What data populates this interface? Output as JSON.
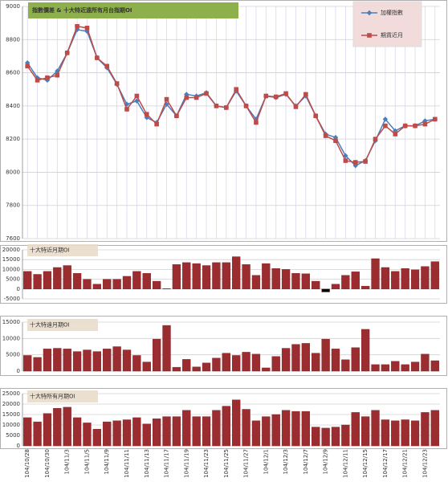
{
  "chart_data": [
    {
      "type": "line",
      "title": "指數價差 & 十大特近遠所有月台指期OI",
      "series": [
        {
          "name": "加權指數",
          "color": "#4a7ebb",
          "marker": "diamond",
          "values": [
            8660,
            8570,
            8555,
            8610,
            8720,
            8860,
            8850,
            8690,
            8630,
            8530,
            8410,
            8430,
            8330,
            8300,
            8410,
            8340,
            8470,
            8460,
            8480,
            8400,
            8390,
            8490,
            8400,
            8320,
            8460,
            8450,
            8470,
            8400,
            8460,
            8340,
            8230,
            8210,
            8100,
            8040,
            8070,
            8190,
            8320,
            8250,
            8280,
            8280,
            8310,
            8320
          ]
        },
        {
          "name": "期貨近月",
          "color": "#be4b48",
          "marker": "square",
          "values": [
            8640,
            8555,
            8570,
            8585,
            8720,
            8880,
            8870,
            8690,
            8640,
            8535,
            8380,
            8460,
            8350,
            8290,
            8440,
            8340,
            8450,
            8450,
            8475,
            8400,
            8390,
            8500,
            8400,
            8300,
            8460,
            8455,
            8475,
            8395,
            8470,
            8340,
            8220,
            8190,
            8070,
            8060,
            8065,
            8200,
            8280,
            8230,
            8280,
            8280,
            8290,
            8320
          ]
        }
      ],
      "ylim": [
        7600,
        9000
      ],
      "yticks": [
        7600,
        7800,
        8000,
        8200,
        8400,
        8600,
        8800,
        9000
      ],
      "grid": true,
      "legend": "top-right"
    },
    {
      "type": "bar",
      "title": "十大特近月期OI",
      "color": "#9b2d30",
      "negative_color": "#000000",
      "values": [
        9000,
        7500,
        9000,
        11000,
        12000,
        8000,
        5000,
        2500,
        5000,
        5000,
        6500,
        9000,
        8000,
        4000,
        200,
        12500,
        13500,
        13000,
        12000,
        13500,
        13500,
        16500,
        12500,
        7000,
        13000,
        10500,
        10000,
        8000,
        7800,
        4000,
        -1500,
        2500,
        7000,
        8800,
        1500,
        15500,
        11000,
        9000,
        10500,
        9800,
        11500,
        14000
      ],
      "ylim": [
        -5000,
        20000
      ],
      "yticks": [
        -5000,
        0,
        5000,
        10000,
        15000,
        20000
      ],
      "grid": true
    },
    {
      "type": "bar",
      "title": "十大特遠月期OI",
      "color": "#9b2d30",
      "values": [
        4800,
        4200,
        6800,
        7000,
        6800,
        6000,
        6500,
        6000,
        6800,
        7500,
        6500,
        4800,
        2800,
        9800,
        14000,
        1200,
        3600,
        1300,
        2500,
        4000,
        5500,
        4800,
        5800,
        5200,
        1000,
        4500,
        7000,
        8200,
        8500,
        5500,
        9800,
        6800,
        3500,
        7200,
        12800,
        2000,
        2000,
        3000,
        2000,
        2800,
        5200,
        3200
      ],
      "ylim": [
        0,
        15000
      ],
      "yticks": [
        0,
        5000,
        10000,
        15000
      ],
      "grid": true
    },
    {
      "type": "bar",
      "title": "十大特所有月期OI",
      "color": "#9b2d30",
      "categories": [
        "104/10/28",
        null,
        "104/10/30",
        null,
        "104/11/3",
        null,
        "104/11/5",
        null,
        "104/11/9",
        null,
        "104/11/11",
        null,
        "104/11/13",
        null,
        "104/11/17",
        null,
        "104/11/19",
        null,
        "104/11/23",
        null,
        "104/11/25",
        null,
        "104/11/27",
        null,
        "104/12/1",
        null,
        "104/12/3",
        null,
        "104/12/7",
        null,
        "104/12/9",
        null,
        "104/12/11",
        null,
        "104/12/15",
        null,
        "104/12/17",
        null,
        "104/12/21",
        null,
        "104/12/23",
        null
      ],
      "values": [
        13500,
        11500,
        15500,
        18000,
        18500,
        13500,
        11000,
        8000,
        11500,
        12000,
        12500,
        13500,
        10500,
        13000,
        14000,
        14000,
        17000,
        14000,
        14000,
        17000,
        19000,
        22000,
        17500,
        12000,
        14000,
        15000,
        17000,
        16500,
        16500,
        9000,
        8500,
        9000,
        10000,
        16000,
        14000,
        17000,
        12500,
        12000,
        12500,
        12000,
        16000,
        17000
      ],
      "ylim": [
        0,
        25000
      ],
      "yticks": [
        0,
        5000,
        10000,
        15000,
        20000,
        25000
      ],
      "grid": true
    }
  ]
}
